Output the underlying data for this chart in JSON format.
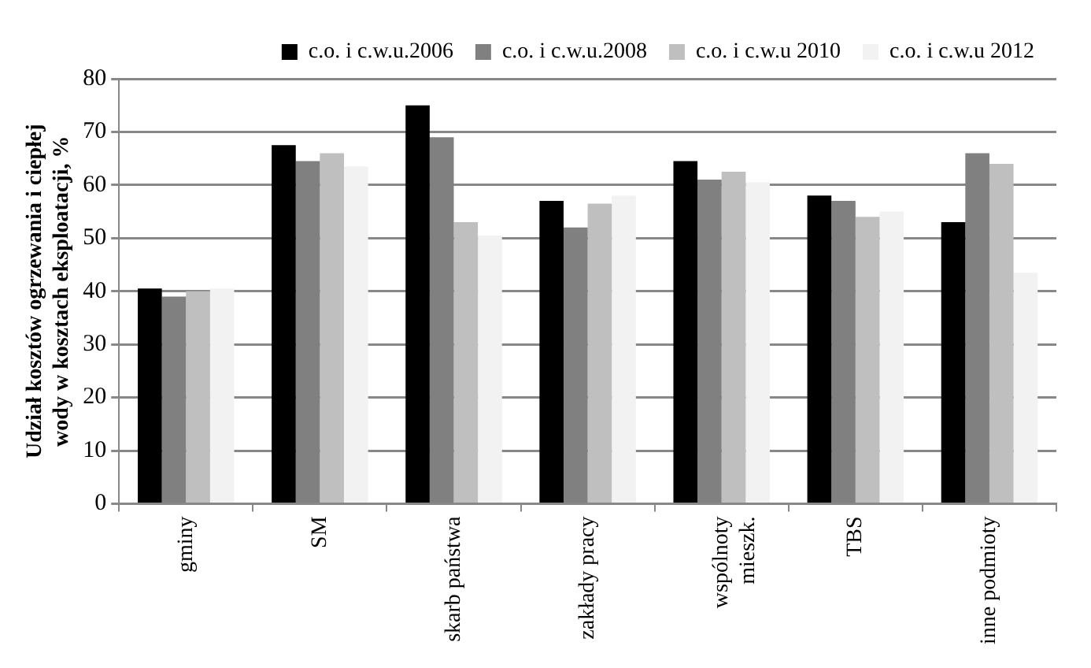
{
  "chart_data": {
    "type": "bar",
    "ylabel": "Udział kosztów ogrzewania i ciepłej wody w kosztach eksploatacji, %",
    "categories": [
      "gminy",
      "SM",
      "skarb państwa",
      "zakłady pracy",
      "wspólnoty mieszk.",
      "TBS",
      "inne podmioty"
    ],
    "series": [
      {
        "name": "c.o. i c.w.u.2006",
        "color": "#000000",
        "values": [
          40.5,
          67.5,
          75,
          57,
          64.5,
          58,
          53
        ]
      },
      {
        "name": "c.o. i c.w.u.2008",
        "color": "#808080",
        "values": [
          39,
          64.5,
          69,
          52,
          61,
          57,
          66
        ]
      },
      {
        "name": "c.o. i c.w.u 2010",
        "color": "#bfbfbf",
        "values": [
          40,
          66,
          53,
          56.5,
          62.5,
          54,
          64
        ]
      },
      {
        "name": "c.o. i c.w.u 2012",
        "color": "#f2f2f2",
        "values": [
          40.5,
          63.5,
          50.5,
          58,
          60.5,
          55,
          43.5
        ]
      }
    ],
    "ylim": [
      0,
      80
    ],
    "yticks": [
      0,
      10,
      20,
      30,
      40,
      50,
      60,
      70,
      80
    ],
    "grid": "y",
    "legend": "top"
  }
}
